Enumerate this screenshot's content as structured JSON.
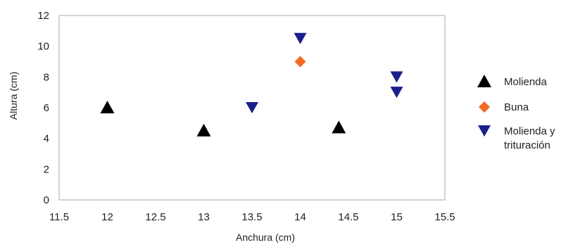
{
  "chart_data": {
    "type": "scatter",
    "title": "",
    "xlabel": "Anchura (cm)",
    "ylabel": "Altura (cm)",
    "xlim": [
      11.5,
      15.5
    ],
    "ylim": [
      0,
      12
    ],
    "xticks": [
      "11.5",
      "12",
      "12.5",
      "13",
      "13.5",
      "14",
      "14.5",
      "15",
      "15.5"
    ],
    "yticks": [
      "0",
      "2",
      "4",
      "6",
      "8",
      "10",
      "12"
    ],
    "grid": false,
    "legend_position": "right",
    "series": [
      {
        "name": "Molienda",
        "marker": "triangle-up",
        "color": "#000000",
        "points": [
          {
            "x": 12,
            "y": 6
          },
          {
            "x": 13,
            "y": 4.5
          },
          {
            "x": 14.4,
            "y": 4.7
          }
        ]
      },
      {
        "name": "Buna",
        "marker": "diamond",
        "color": "#F26A21",
        "points": [
          {
            "x": 14,
            "y": 9
          }
        ]
      },
      {
        "name": "Molienda y trituración",
        "marker": "triangle-down",
        "color": "#1A1F8C",
        "points": [
          {
            "x": 13.5,
            "y": 6
          },
          {
            "x": 14,
            "y": 10.5
          },
          {
            "x": 15,
            "y": 8
          },
          {
            "x": 15,
            "y": 7
          }
        ]
      }
    ]
  }
}
